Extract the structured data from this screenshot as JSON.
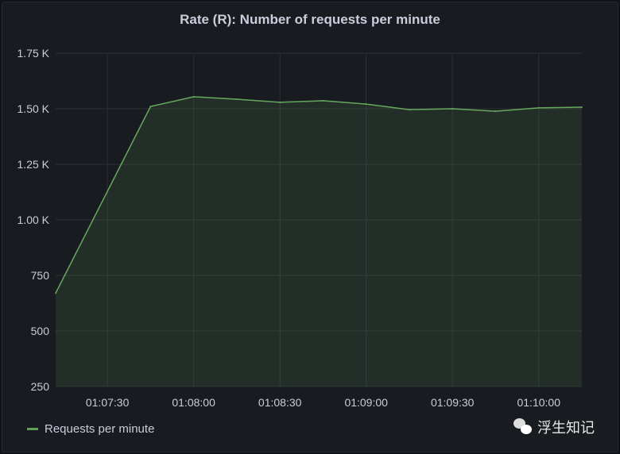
{
  "chart_data": {
    "type": "area",
    "title": "Rate (R): Number of requests per minute",
    "xlabel": "",
    "ylabel": "",
    "ylim": [
      250,
      1750
    ],
    "y_ticks": [
      {
        "value": 250,
        "label": "250"
      },
      {
        "value": 500,
        "label": "500"
      },
      {
        "value": 750,
        "label": "750"
      },
      {
        "value": 1000,
        "label": "1.00 K"
      },
      {
        "value": 1250,
        "label": "1.25 K"
      },
      {
        "value": 1500,
        "label": "1.50 K"
      },
      {
        "value": 1750,
        "label": "1.75 K"
      }
    ],
    "x_range": [
      "01:07:12",
      "01:10:15"
    ],
    "x_ticks": [
      "01:07:30",
      "01:08:00",
      "01:08:30",
      "01:09:00",
      "01:09:30",
      "01:10:00"
    ],
    "grid": true,
    "legend_position": "bottom-left",
    "series": [
      {
        "name": "Requests per minute",
        "color": "#73bf69",
        "x": [
          "01:07:12",
          "01:07:45",
          "01:08:00",
          "01:08:15",
          "01:08:30",
          "01:08:45",
          "01:09:00",
          "01:09:15",
          "01:09:30",
          "01:09:45",
          "01:10:00",
          "01:10:15"
        ],
        "values": [
          670,
          1510,
          1554,
          1543,
          1529,
          1536,
          1521,
          1496,
          1500,
          1489,
          1504,
          1507
        ]
      }
    ]
  },
  "watermark": "浮生知记"
}
